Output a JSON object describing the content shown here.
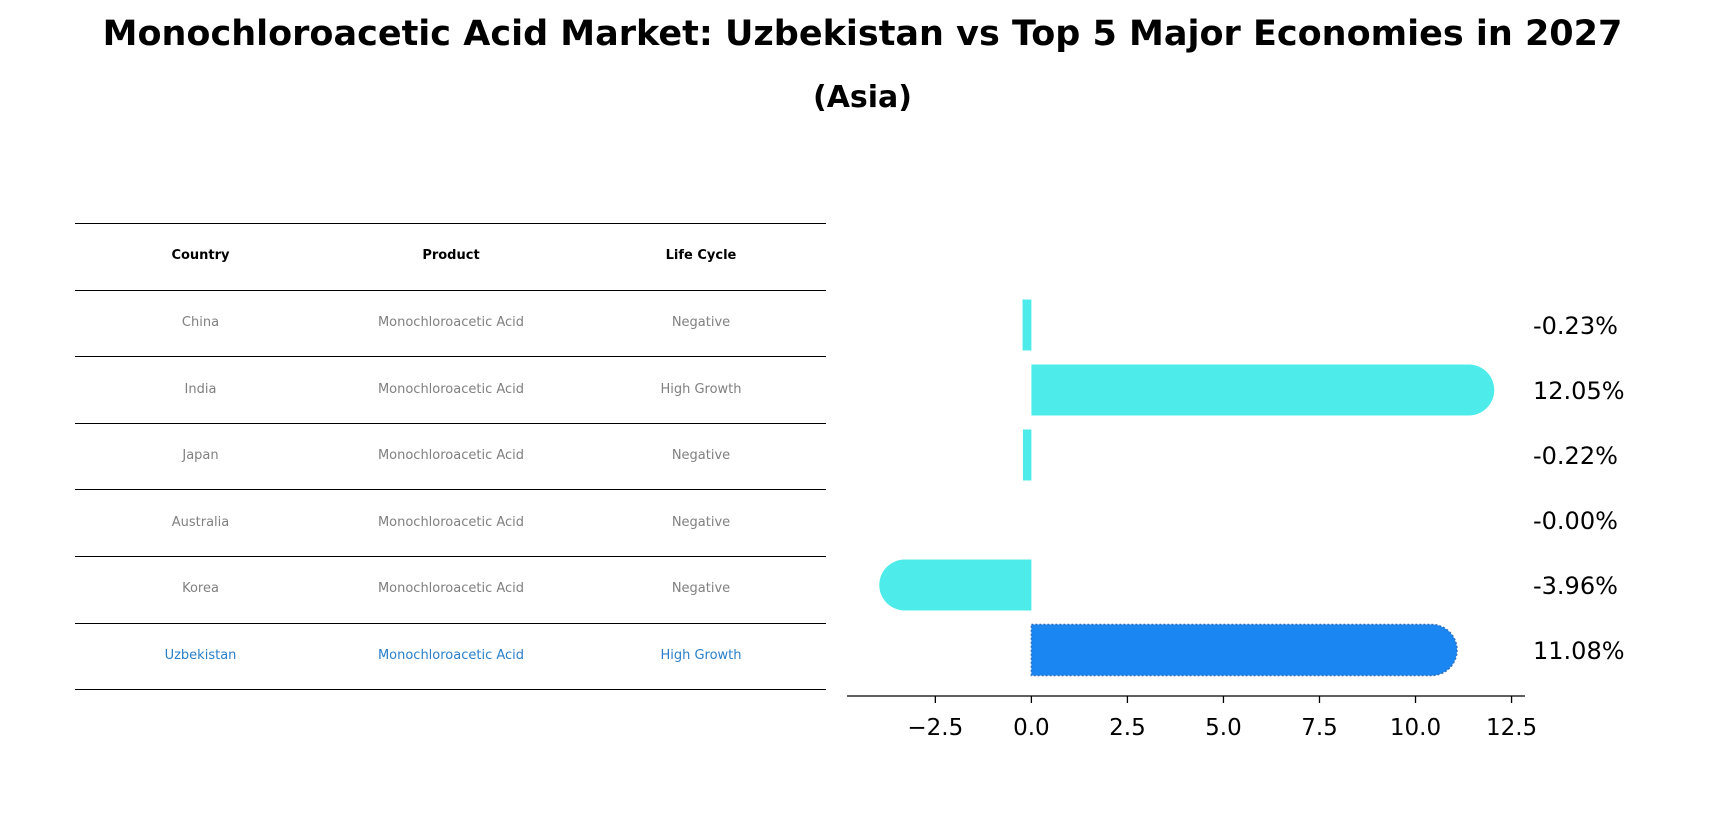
{
  "title": "Monochloroacetic Acid Market: Uzbekistan vs Top 5 Major Economies in 2027",
  "subtitle": "(Asia)",
  "table": {
    "headers": [
      "Country",
      "Product",
      "Life Cycle"
    ],
    "rows": [
      {
        "country": "China",
        "product": "Monochloroacetic Acid",
        "life_cycle": "Negative",
        "highlight": false
      },
      {
        "country": "India",
        "product": "Monochloroacetic Acid",
        "life_cycle": "High Growth",
        "highlight": false
      },
      {
        "country": "Japan",
        "product": "Monochloroacetic Acid",
        "life_cycle": "Negative",
        "highlight": false
      },
      {
        "country": "Australia",
        "product": "Monochloroacetic Acid",
        "life_cycle": "Negative",
        "highlight": false
      },
      {
        "country": "Korea",
        "product": "Monochloroacetic Acid",
        "life_cycle": "Negative",
        "highlight": false
      },
      {
        "country": "Uzbekistan",
        "product": "Monochloroacetic Acid",
        "life_cycle": "High Growth",
        "highlight": true
      }
    ]
  },
  "chart_data": {
    "type": "bar",
    "orientation": "horizontal",
    "categories": [
      "China",
      "India",
      "Japan",
      "Australia",
      "Korea",
      "Uzbekistan"
    ],
    "values": [
      -0.23,
      12.05,
      -0.22,
      -0.0,
      -3.96,
      11.08
    ],
    "data_labels": [
      "-0.23%",
      "12.05%",
      "-0.22%",
      "-0.00%",
      "-3.96%",
      "11.08%"
    ],
    "xlim": [
      -4.8,
      12.85
    ],
    "xticks": [
      -2.5,
      0.0,
      2.5,
      5.0,
      7.5,
      10.0,
      12.5
    ],
    "xtick_labels": [
      "−2.5",
      "0.0",
      "2.5",
      "5.0",
      "7.5",
      "10.0",
      "12.5"
    ],
    "highlight_category": "Uzbekistan",
    "colors": {
      "default": "#4deceb",
      "highlight": "#1a86f2"
    }
  }
}
